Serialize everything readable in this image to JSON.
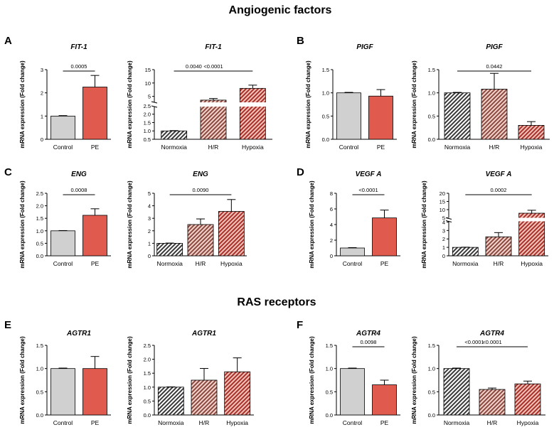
{
  "figure": {
    "section_titles": [
      "Angiogenic factors",
      "RAS receptors"
    ],
    "panel_letters": [
      "A",
      "B",
      "C",
      "D",
      "E",
      "F"
    ]
  },
  "colors": {
    "control_fill": "#d0d0d0",
    "pe_fill": "#e05a4e",
    "normoxia_stripe": "#3a3a3a",
    "hr_stripe": "#8a4a40",
    "hypoxia_stripe": "#a8312a",
    "axis": "#000000"
  },
  "chart_data": [
    {
      "id": "A-left",
      "type": "bar",
      "title": "FIT-1",
      "ylabel": "mRNA expression (Fold change)",
      "categories": [
        "Control",
        "PE"
      ],
      "values": [
        1.0,
        2.25
      ],
      "errors": [
        0.02,
        0.5
      ],
      "ylim": [
        0,
        3
      ],
      "yticks": [
        "0",
        "1",
        "2",
        "3"
      ],
      "annotations": [
        {
          "text": "0.0005",
          "from": 0,
          "to": 1
        }
      ]
    },
    {
      "id": "A-right",
      "type": "bar",
      "title": "FIT-1",
      "ylabel": "mRNA expression (Fold change)",
      "categories": [
        "Normoxia",
        "H/R",
        "Hypoxia"
      ],
      "values": [
        1.0,
        3.6,
        8.0
      ],
      "errors": [
        0.02,
        0.6,
        1.2
      ],
      "ylim": [
        0,
        15
      ],
      "yticks": [
        "0.5",
        "1.0",
        "1.5",
        "2.0",
        "2.5",
        "5",
        "10",
        "15"
      ],
      "annotations": [
        {
          "text": "0.0040",
          "from": 0,
          "to": 1
        },
        {
          "text": "<0.0001",
          "from": 0,
          "to": 2
        }
      ]
    },
    {
      "id": "B-left",
      "type": "bar",
      "title": "PIGF",
      "ylabel": "mRNA expression (Fold change)",
      "categories": [
        "Control",
        "PE"
      ],
      "values": [
        1.0,
        0.93
      ],
      "errors": [
        0.01,
        0.14
      ],
      "ylim": [
        0,
        1.5
      ],
      "yticks": [
        "0.0",
        "0.5",
        "1.0",
        "1.5"
      ],
      "annotations": []
    },
    {
      "id": "B-right",
      "type": "bar",
      "title": "PIGF",
      "ylabel": "mRNA expression (Fold change)",
      "categories": [
        "Normoxia",
        "H/R",
        "Hypoxia"
      ],
      "values": [
        1.0,
        1.08,
        0.3
      ],
      "errors": [
        0.01,
        0.34,
        0.08
      ],
      "ylim": [
        0,
        1.5
      ],
      "yticks": [
        "0.0",
        "0.5",
        "1.0",
        "1.5"
      ],
      "annotations": [
        {
          "text": "0.0442",
          "from": 0,
          "to": 2
        }
      ]
    },
    {
      "id": "C-left",
      "type": "bar",
      "title": "ENG",
      "ylabel": "mRNA expression (Fold change)",
      "categories": [
        "Control",
        "PE"
      ],
      "values": [
        1.0,
        1.62
      ],
      "errors": [
        0.01,
        0.26
      ],
      "ylim": [
        0,
        2.5
      ],
      "yticks": [
        "0.0",
        "0.5",
        "1.0",
        "1.5",
        "2.0",
        "2.5"
      ],
      "annotations": [
        {
          "text": "0.0008",
          "from": 0,
          "to": 1
        }
      ]
    },
    {
      "id": "C-right",
      "type": "bar",
      "title": "ENG",
      "ylabel": "mRNA expression (Fold change)",
      "categories": [
        "Normoxia",
        "H/R",
        "Hypoxia"
      ],
      "values": [
        1.0,
        2.5,
        3.55
      ],
      "errors": [
        0.02,
        0.45,
        0.95
      ],
      "ylim": [
        0,
        5
      ],
      "yticks": [
        "0",
        "1",
        "2",
        "3",
        "4",
        "5"
      ],
      "annotations": [
        {
          "text": "0.0090",
          "from": 0,
          "to": 2
        }
      ]
    },
    {
      "id": "D-left",
      "type": "bar",
      "title": "VEGF A",
      "ylabel": "mRNA expression (Fold change)",
      "categories": [
        "Control",
        "PE"
      ],
      "values": [
        1.0,
        4.85
      ],
      "errors": [
        0.05,
        1.0
      ],
      "ylim": [
        0,
        8
      ],
      "yticks": [
        "0",
        "2",
        "4",
        "6",
        "8"
      ],
      "annotations": [
        {
          "text": "<0.0001",
          "from": 0,
          "to": 1
        }
      ]
    },
    {
      "id": "D-right",
      "type": "bar",
      "title": "VEGF A",
      "ylabel": "mRNA expression (Fold change)",
      "categories": [
        "Normoxia",
        "H/R",
        "Hypoxia"
      ],
      "values": [
        1.0,
        2.25,
        7.8
      ],
      "errors": [
        0.02,
        0.5,
        1.8
      ],
      "ylim": [
        0,
        20
      ],
      "yticks": [
        "0",
        "1",
        "2",
        "3",
        "4",
        "5",
        "10",
        "15",
        "20"
      ],
      "annotations": [
        {
          "text": "0.0002",
          "from": 0,
          "to": 2
        }
      ]
    },
    {
      "id": "E-left",
      "type": "bar",
      "title": "AGTR1",
      "ylabel": "mRNA expression (Fold change)",
      "categories": [
        "Control",
        "PE"
      ],
      "values": [
        1.0,
        1.0
      ],
      "errors": [
        0.01,
        0.26
      ],
      "ylim": [
        0,
        1.5
      ],
      "yticks": [
        "0.0",
        "0.5",
        "1.0",
        "1.5"
      ],
      "annotations": []
    },
    {
      "id": "E-right",
      "type": "bar",
      "title": "AGTR1",
      "ylabel": "mRNA expression (Fold change)",
      "categories": [
        "Normoxia",
        "H/R",
        "Hypoxia"
      ],
      "values": [
        1.0,
        1.25,
        1.55
      ],
      "errors": [
        0.01,
        0.42,
        0.5
      ],
      "ylim": [
        0,
        2.5
      ],
      "yticks": [
        "0.0",
        "0.5",
        "1.0",
        "1.5",
        "2.0",
        "2.5"
      ],
      "annotations": []
    },
    {
      "id": "F-left",
      "type": "bar",
      "title": "AGTR4",
      "ylabel": "mRNA expression (Fold change)",
      "categories": [
        "Control",
        "PE"
      ],
      "values": [
        1.0,
        0.65
      ],
      "errors": [
        0.01,
        0.1
      ],
      "ylim": [
        0,
        1.5
      ],
      "yticks": [
        "0.0",
        "0.5",
        "1.0",
        "1.5"
      ],
      "annotations": [
        {
          "text": "0.0098",
          "from": 0,
          "to": 1
        }
      ]
    },
    {
      "id": "F-right",
      "type": "bar",
      "title": "AGTR4",
      "ylabel": "mRNA expression (Fold change)",
      "categories": [
        "Normoxia",
        "H/R",
        "Hypoxia"
      ],
      "values": [
        1.0,
        0.55,
        0.67
      ],
      "errors": [
        0.01,
        0.03,
        0.06
      ],
      "ylim": [
        0,
        1.5
      ],
      "yticks": [
        "0.0",
        "0.5",
        "1.0",
        "1.5"
      ],
      "annotations": [
        {
          "text": "<0.0001",
          "from": 0,
          "to": 1
        },
        {
          "text": "<0.0001",
          "from": 0,
          "to": 2
        }
      ]
    }
  ]
}
